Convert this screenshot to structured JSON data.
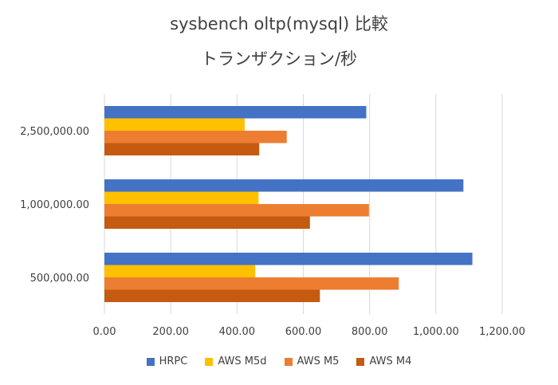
{
  "chart_data": {
    "type": "bar",
    "orientation": "horizontal",
    "title": "sysbench oltp(mysql) 比較",
    "subtitle": "トランザクション/秒",
    "categories": [
      "2,500,000.00",
      "1,000,000.00",
      "500,000.00"
    ],
    "series": [
      {
        "name": "HRPC",
        "color": "#4472C4",
        "values": [
          790,
          1083,
          1110
        ]
      },
      {
        "name": "AWS M5d",
        "color": "#FFC000",
        "values": [
          423,
          465,
          455
        ]
      },
      {
        "name": "AWS M5",
        "color": "#ED7D31",
        "values": [
          550,
          798,
          888
        ]
      },
      {
        "name": "AWS M4",
        "color": "#C55A11",
        "values": [
          467,
          620,
          650
        ]
      }
    ],
    "xlim": [
      0,
      1200
    ],
    "xticks": [
      "0.00",
      "200.00",
      "400.00",
      "600.00",
      "800.00",
      "1,000.00",
      "1,200.00"
    ],
    "grid": true,
    "legend": "bottom"
  }
}
